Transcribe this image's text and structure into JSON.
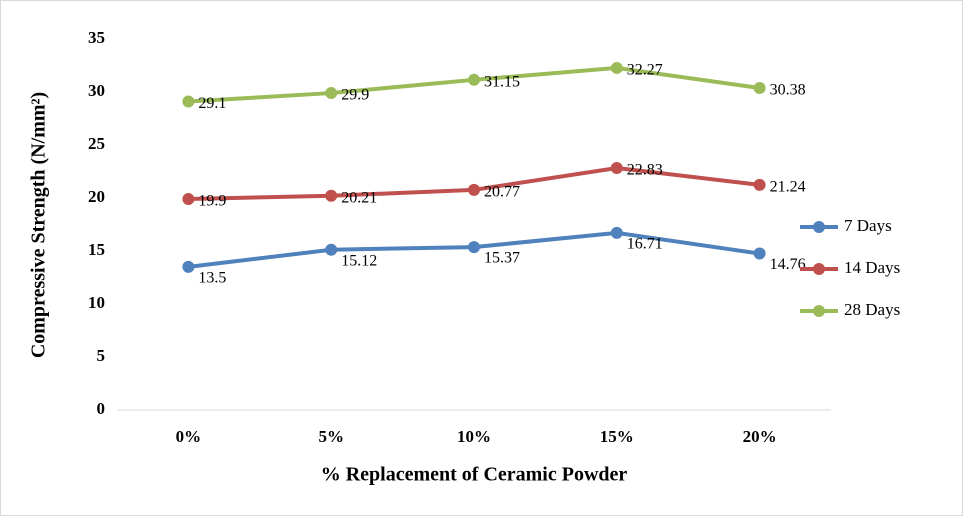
{
  "chart_data": {
    "type": "line",
    "x_label": "% Replacement of Ceramic Powder",
    "y_label": "Compressive Strength (N/mm²)",
    "categories": [
      "0%",
      "5%",
      "10%",
      "15%",
      "20%"
    ],
    "series": [
      {
        "name": "7 Days",
        "color": "#4f81bd",
        "values": [
          13.5,
          15.12,
          15.37,
          16.71,
          14.76
        ]
      },
      {
        "name": "14 Days",
        "color": "#c0504d",
        "values": [
          19.9,
          20.21,
          20.77,
          22.83,
          21.24
        ]
      },
      {
        "name": "28 Days",
        "color": "#9bbb59",
        "values": [
          29.1,
          29.9,
          31.15,
          32.27,
          30.38
        ]
      }
    ],
    "ylim": [
      0,
      35
    ],
    "yticks": [
      0,
      5,
      10,
      15,
      20,
      25,
      30,
      35
    ],
    "grid": false,
    "legend": "right"
  }
}
